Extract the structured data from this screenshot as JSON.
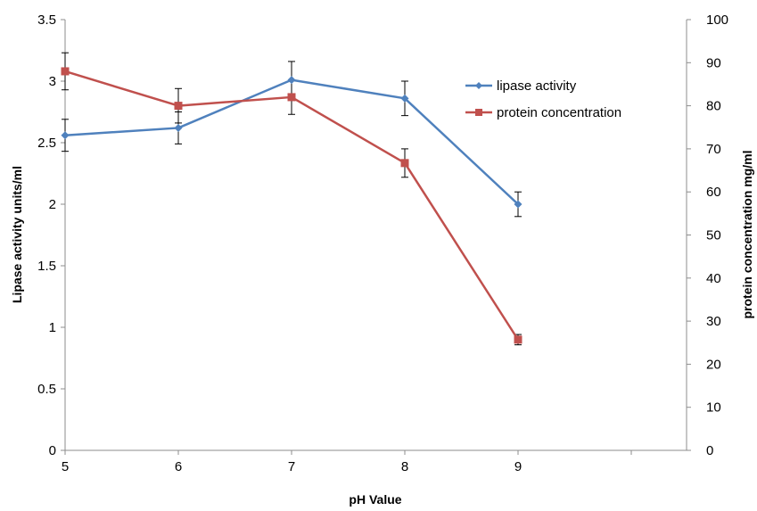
{
  "chart_data": {
    "type": "line",
    "xlabel": "pH Value",
    "ylabel": "Lipase activity units/ml",
    "y2label": "protein concentration  mg/ml",
    "x": [
      5,
      6,
      7,
      8,
      9
    ],
    "x_ticks": [
      "5",
      "6",
      "7",
      "8",
      "9"
    ],
    "ylim": [
      0,
      3.5
    ],
    "y_ticks": [
      "0",
      "0.5",
      "1",
      "1.5",
      "2",
      "2.5",
      "3",
      "3.5"
    ],
    "y2lim": [
      0,
      100
    ],
    "y2_ticks": [
      "0",
      "10",
      "20",
      "30",
      "40",
      "50",
      "60",
      "70",
      "80",
      "90",
      "100"
    ],
    "grid": false,
    "legend_position": "top-right",
    "series": [
      {
        "name": "lipase activity",
        "axis": "left",
        "color": "#4f81bd",
        "marker": "diamond",
        "values": [
          2.56,
          2.62,
          3.01,
          2.86,
          2.0
        ],
        "error": [
          0.13,
          0.13,
          0.15,
          0.14,
          0.1
        ]
      },
      {
        "name": "protein concentration",
        "axis": "right",
        "color": "#c0504d",
        "marker": "square",
        "values": [
          88,
          80,
          82,
          66.7,
          25.7
        ],
        "error": [
          4.3,
          4,
          4,
          3.3,
          1.2
        ]
      }
    ]
  }
}
